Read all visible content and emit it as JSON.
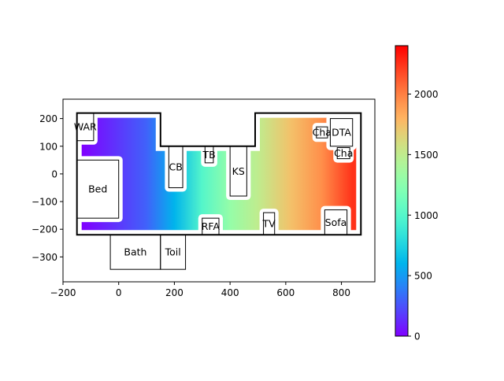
{
  "chart_data": {
    "type": "heatmap",
    "title": "",
    "xlabel": "",
    "ylabel": "",
    "xlim": [
      -200,
      920
    ],
    "ylim": [
      -390,
      270
    ],
    "xticks": [
      -200,
      0,
      200,
      400,
      600,
      800
    ],
    "yticks": [
      -300,
      -200,
      -100,
      0,
      100,
      200
    ],
    "colormap": "rainbow",
    "colorbar": {
      "range": [
        0,
        2400
      ],
      "ticks": [
        0,
        500,
        1000,
        1500,
        2000
      ]
    },
    "room_outline": [
      [
        -150,
        -220
      ],
      [
        -150,
        220
      ],
      [
        150,
        220
      ],
      [
        150,
        100
      ],
      [
        490,
        100
      ],
      [
        490,
        220
      ],
      [
        870,
        220
      ],
      [
        870,
        -220
      ],
      [
        -150,
        -220
      ]
    ],
    "field_samples": [
      {
        "x": -130,
        "y": 0,
        "value": 0
      },
      {
        "x": 100,
        "y": 0,
        "value": 300
      },
      {
        "x": 200,
        "y": 0,
        "value": 600
      },
      {
        "x": 300,
        "y": 0,
        "value": 1000
      },
      {
        "x": 400,
        "y": 0,
        "value": 1300
      },
      {
        "x": 500,
        "y": 0,
        "value": 1500
      },
      {
        "x": 620,
        "y": 0,
        "value": 1750
      },
      {
        "x": 730,
        "y": 0,
        "value": 1950
      },
      {
        "x": 840,
        "y": 0,
        "value": 2250
      }
    ],
    "objects": [
      {
        "label": "WAR",
        "x0": -150,
        "y0": 120,
        "x1": -90,
        "y1": 220
      },
      {
        "label": "Bed",
        "x0": -150,
        "y0": -160,
        "x1": 0,
        "y1": 50
      },
      {
        "label": "Bath",
        "x0": -30,
        "y0": -345,
        "x1": 150,
        "y1": -220
      },
      {
        "label": "Toil",
        "x0": 150,
        "y0": -345,
        "x1": 240,
        "y1": -220
      },
      {
        "label": "CB",
        "x0": 180,
        "y0": -50,
        "x1": 230,
        "y1": 100
      },
      {
        "label": "TB",
        "x0": 310,
        "y0": 40,
        "x1": 340,
        "y1": 100
      },
      {
        "label": "KS",
        "x0": 400,
        "y0": -80,
        "x1": 460,
        "y1": 100
      },
      {
        "label": "RFA",
        "x0": 300,
        "y0": -220,
        "x1": 360,
        "y1": -160
      },
      {
        "label": "TV",
        "x0": 520,
        "y0": -220,
        "x1": 560,
        "y1": -140
      },
      {
        "label": "Sofa",
        "x0": 740,
        "y0": -220,
        "x1": 820,
        "y1": -130
      },
      {
        "label": "DTA",
        "x0": 760,
        "y0": 100,
        "x1": 840,
        "y1": 200
      },
      {
        "label": "Cha",
        "x0": 710,
        "y0": 130,
        "x1": 750,
        "y1": 170
      },
      {
        "label": "Cha",
        "x0": 785,
        "y0": 55,
        "x1": 830,
        "y1": 95
      }
    ]
  }
}
